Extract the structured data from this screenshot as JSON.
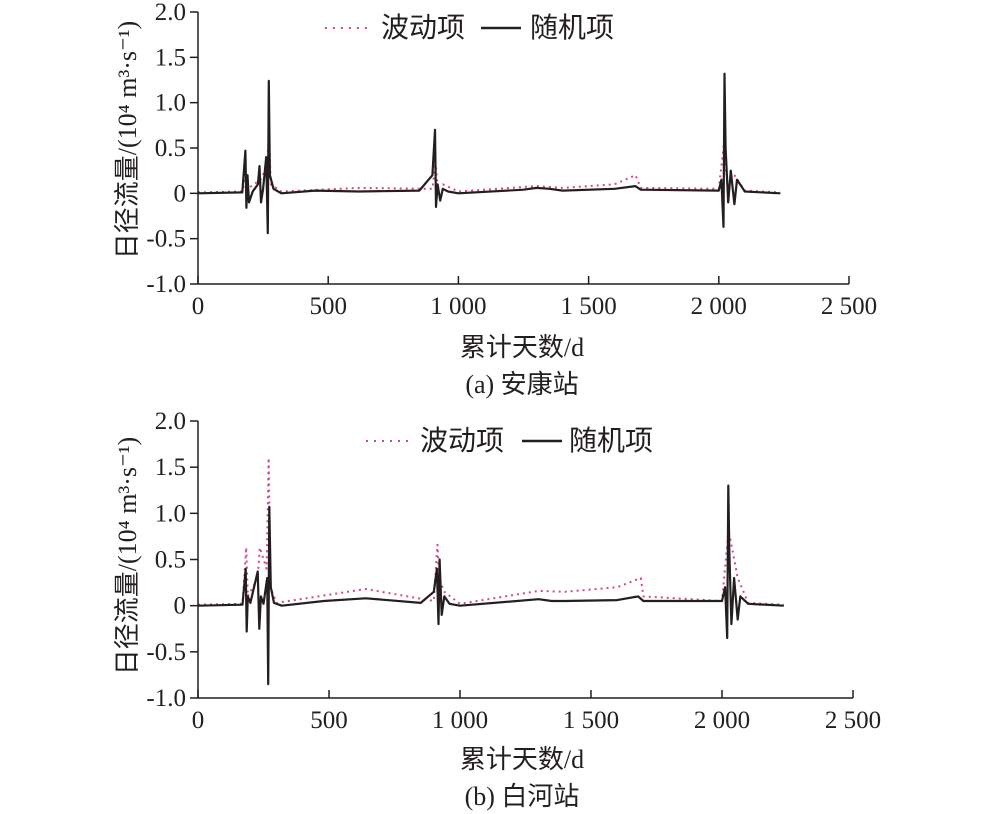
{
  "legend": {
    "fluct_label": "波动项",
    "random_label": "随机项"
  },
  "colors": {
    "fluct": "#d4468f",
    "random": "#231f20",
    "axis": "#231f20"
  },
  "chart_data": [
    {
      "type": "line",
      "caption": "(a) 安康站",
      "xlabel": "累计天数/d",
      "ylabel": "日径流量/(10⁴ m³·s⁻¹)",
      "xlim": [
        0,
        2500
      ],
      "ylim": [
        -1.0,
        2.0
      ],
      "x_ticks": [
        0,
        500,
        1000,
        1500,
        2000,
        2500
      ],
      "x_tick_labels": [
        "0",
        "500",
        "1 000",
        "1 500",
        "2 000",
        "2 500"
      ],
      "y_ticks": [
        2.0,
        1.5,
        1.0,
        0.5,
        0,
        -0.5,
        -1.0
      ],
      "y_tick_labels": [
        "2.0",
        "1.5",
        "1.0",
        "0.5",
        "0",
        "-0.5",
        "-1.0"
      ],
      "legend_position": "top-center",
      "series": [
        {
          "name": "随机项",
          "style": "solid",
          "x": [
            0,
            170,
            182,
            186,
            190,
            196,
            210,
            230,
            236,
            242,
            250,
            262,
            268,
            272,
            276,
            290,
            320,
            450,
            620,
            850,
            900,
            910,
            914,
            920,
            930,
            940,
            960,
            1000,
            1250,
            1300,
            1350,
            1400,
            1600,
            1680,
            1700,
            2000,
            2010,
            2018,
            2022,
            2026,
            2036,
            2046,
            2060,
            2070,
            2100,
            2236
          ],
          "y": [
            0,
            0.01,
            0.47,
            -0.16,
            0.2,
            -0.1,
            0.02,
            0.1,
            0.3,
            -0.1,
            0.05,
            0.4,
            -0.44,
            1.24,
            0.2,
            0.05,
            0,
            0.03,
            0.02,
            0.03,
            0.2,
            0.7,
            -0.15,
            0.1,
            -0.08,
            0.05,
            0.02,
            0,
            0.04,
            0.06,
            0.05,
            0.03,
            0.05,
            0.08,
            0.04,
            0.03,
            0.15,
            -0.37,
            1.32,
            0.5,
            -0.1,
            0.25,
            -0.12,
            0.15,
            0.02,
            0
          ]
        },
        {
          "name": "波动项",
          "style": "dotted",
          "x": [
            0,
            170,
            184,
            190,
            240,
            266,
            272,
            280,
            320,
            620,
            900,
            912,
            920,
            940,
            1000,
            1300,
            1400,
            1600,
            1680,
            1700,
            2000,
            2020,
            2028,
            2040,
            2060,
            2100,
            2236
          ],
          "y": [
            0.01,
            0.02,
            0.2,
            0.05,
            0.15,
            0.3,
            0.68,
            0.1,
            0.02,
            0.06,
            0.05,
            0.35,
            0.08,
            0.1,
            0.02,
            0.08,
            0.06,
            0.1,
            0.2,
            0.06,
            0.05,
            0.55,
            0.2,
            0.25,
            0.2,
            0.03,
            0.01
          ]
        }
      ]
    },
    {
      "type": "line",
      "caption": "(b) 白河站",
      "xlabel": "累计天数/d",
      "ylabel": "日径流量/(10⁴ m³·s⁻¹)",
      "xlim": [
        0,
        2500
      ],
      "ylim": [
        -1.0,
        2.0
      ],
      "x_ticks": [
        0,
        500,
        1000,
        1500,
        2000,
        2500
      ],
      "x_tick_labels": [
        "0",
        "500",
        "1 000",
        "1 500",
        "2 000",
        "2 500"
      ],
      "y_ticks": [
        2.0,
        1.5,
        1.0,
        0.5,
        0,
        -0.5,
        -1.0
      ],
      "y_tick_labels": [
        "2.0",
        "1.5",
        "1.0",
        "0.5",
        "0",
        "-0.5",
        "-1.0"
      ],
      "legend_position": "top-center",
      "series": [
        {
          "name": "随机项",
          "style": "solid",
          "x": [
            0,
            170,
            182,
            186,
            190,
            200,
            228,
            234,
            240,
            250,
            264,
            268,
            272,
            278,
            290,
            320,
            480,
            640,
            850,
            900,
            912,
            918,
            922,
            930,
            940,
            960,
            1000,
            1300,
            1350,
            1400,
            1600,
            1680,
            1700,
            2000,
            2012,
            2020,
            2024,
            2028,
            2036,
            2046,
            2060,
            2070,
            2100,
            2236
          ],
          "y": [
            0,
            0.01,
            0.4,
            -0.28,
            0.1,
            0.03,
            0.37,
            -0.25,
            0.1,
            0.02,
            0.3,
            -0.85,
            1.07,
            0.2,
            0.03,
            0,
            0.05,
            0.08,
            0.03,
            0.15,
            0.4,
            -0.2,
            0.5,
            -0.1,
            0.1,
            0.02,
            0,
            0.07,
            0.05,
            0.05,
            0.06,
            0.1,
            0.05,
            0.05,
            0.2,
            -0.35,
            1.3,
            0.6,
            -0.2,
            0.3,
            -0.15,
            0.1,
            0.02,
            0
          ]
        },
        {
          "name": "波动项",
          "style": "dotted",
          "x": [
            0,
            170,
            184,
            190,
            228,
            236,
            262,
            270,
            276,
            300,
            640,
            900,
            914,
            920,
            940,
            1000,
            1300,
            1400,
            1600,
            1690,
            1700,
            2000,
            2018,
            2026,
            2040,
            2060,
            2100,
            2236
          ],
          "y": [
            0.01,
            0.02,
            0.63,
            0.1,
            0.3,
            0.63,
            0.4,
            1.6,
            0.2,
            0.03,
            0.18,
            0.05,
            0.66,
            0.3,
            0.15,
            0.02,
            0.16,
            0.15,
            0.2,
            0.3,
            0.1,
            0.05,
            0.6,
            0.8,
            0.6,
            0.3,
            0.03,
            0.01
          ]
        }
      ]
    }
  ]
}
